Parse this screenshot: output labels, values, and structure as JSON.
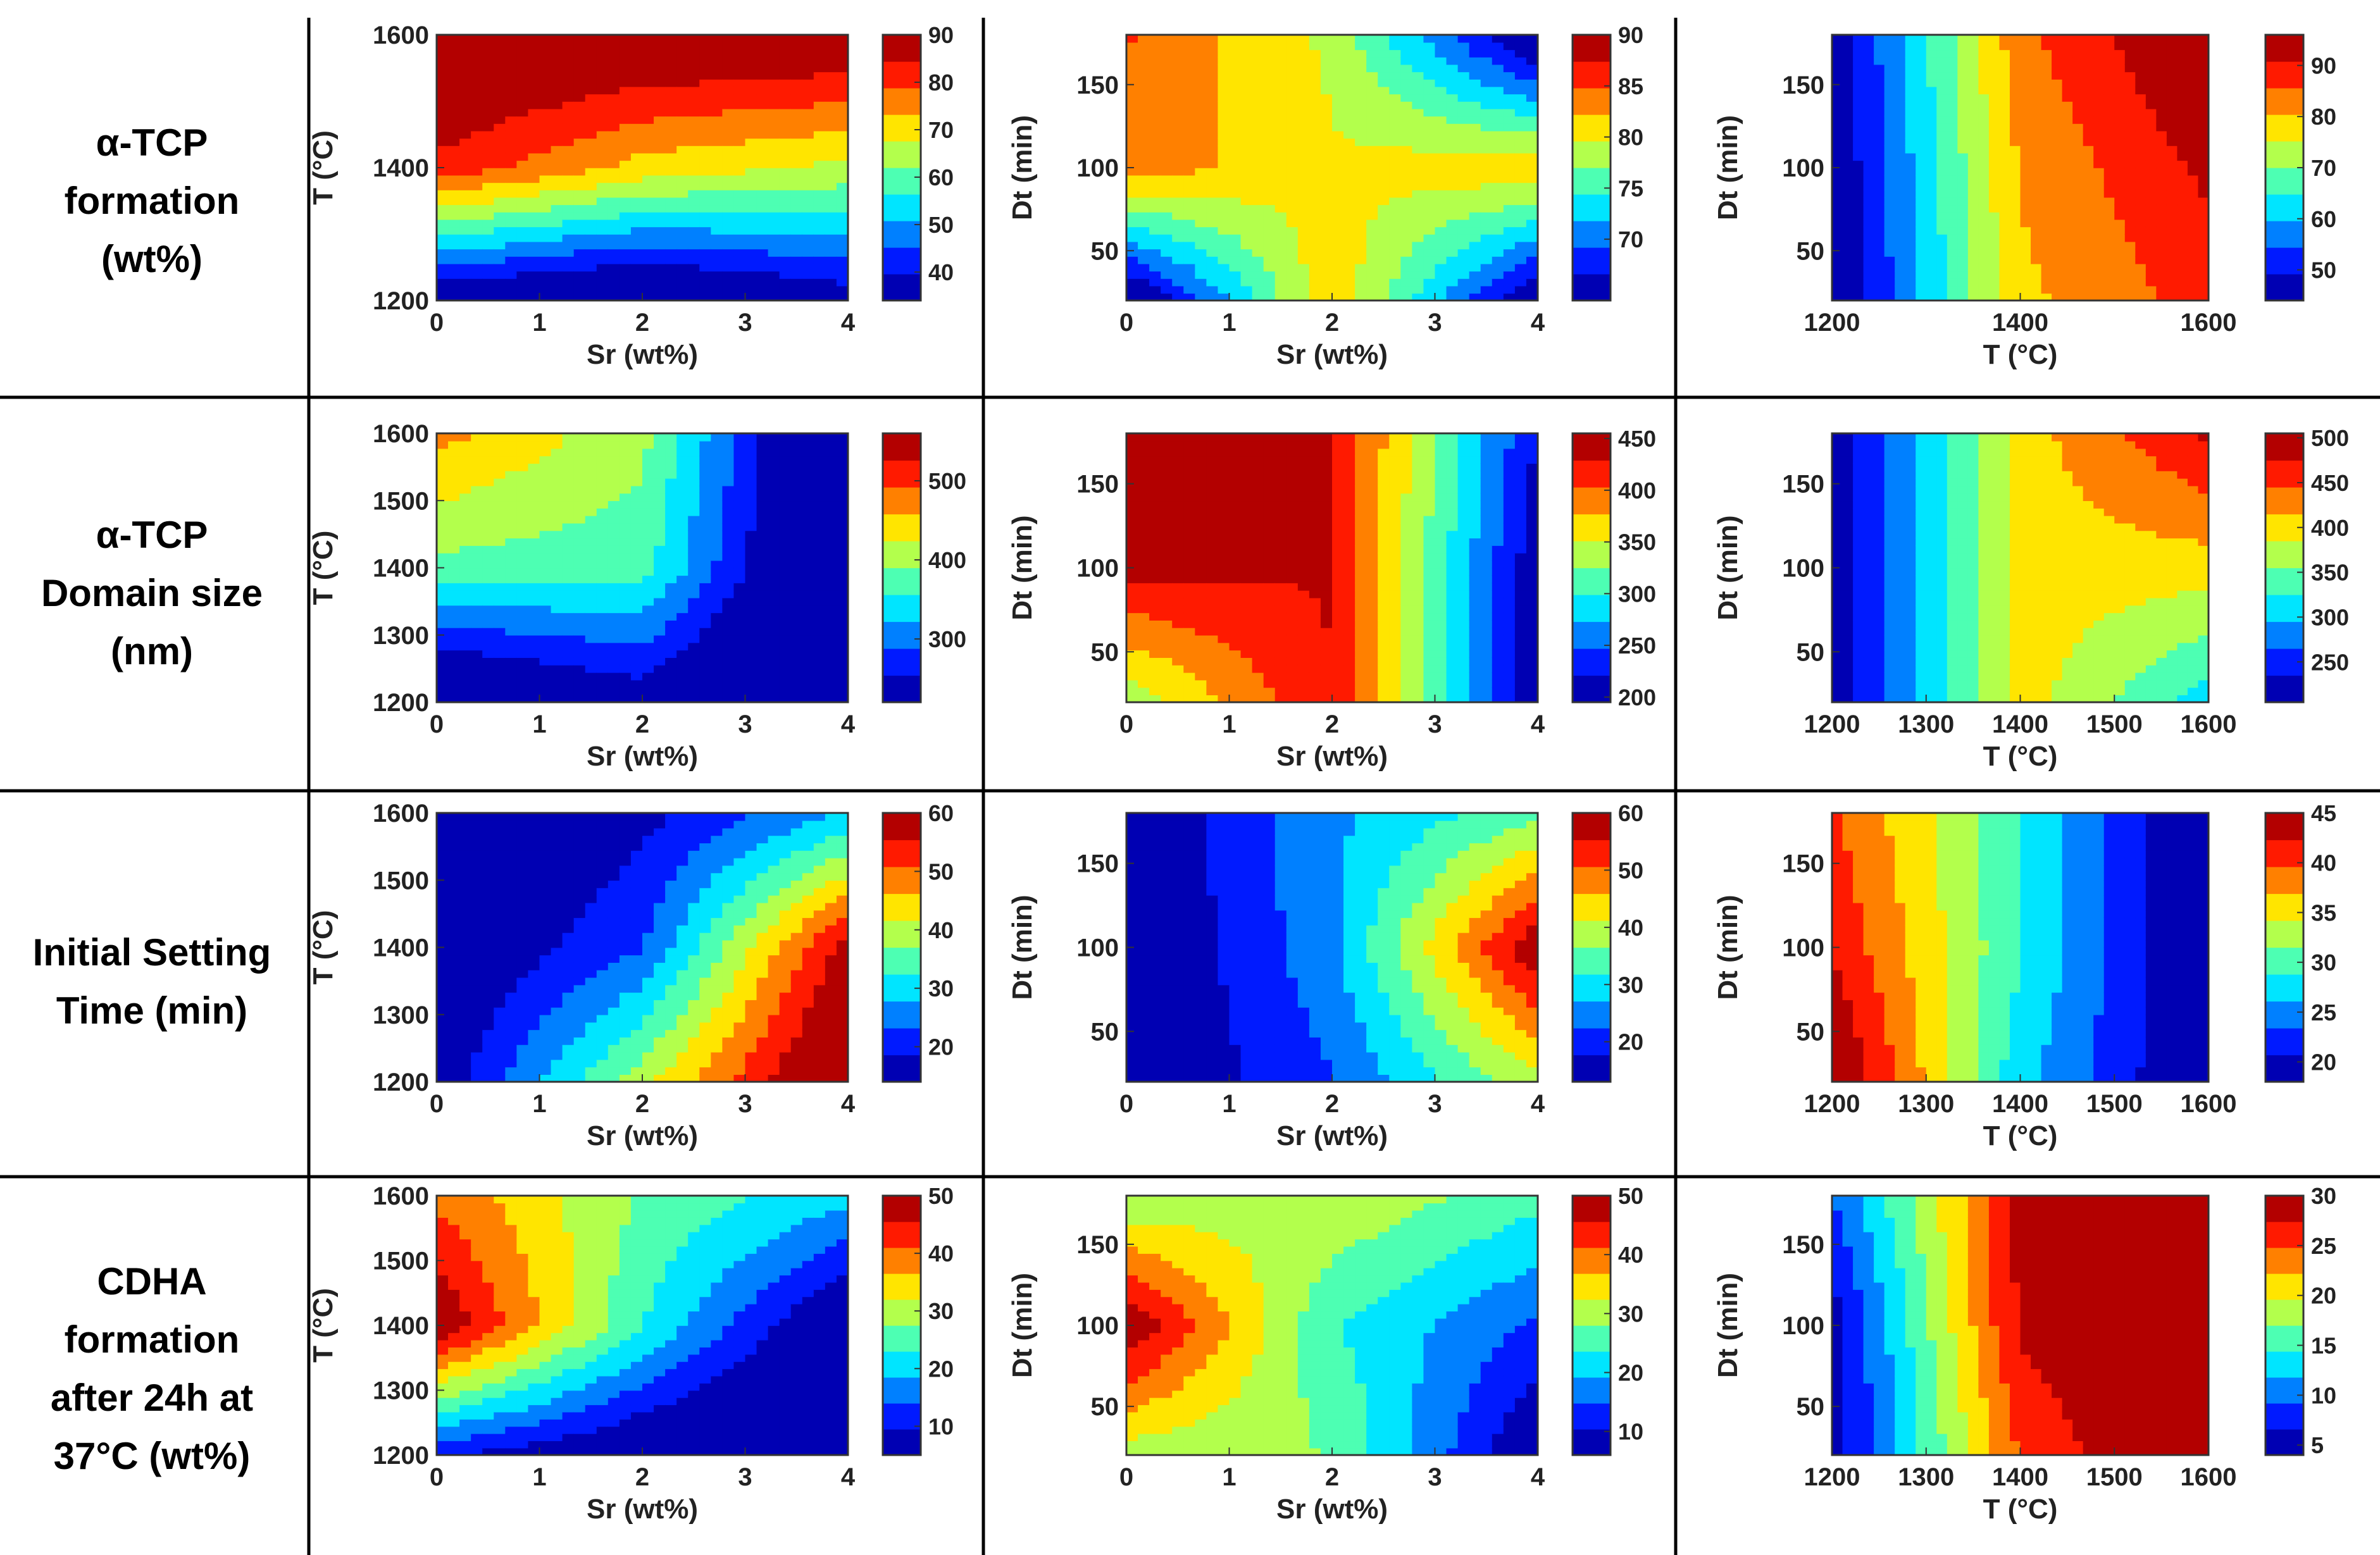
{
  "rows": [
    {
      "title_lines": [
        "α-TCP",
        "formation",
        "(wt%)"
      ]
    },
    {
      "title_lines": [
        "α-TCP",
        "Domain size",
        "(nm)"
      ]
    },
    {
      "title_lines": [
        "Initial Setting",
        "Time (min)"
      ]
    },
    {
      "title_lines": [
        "CDHA",
        "formation",
        "after 24h at",
        "37°C (wt%)"
      ]
    }
  ],
  "chart_data": [
    {
      "id": "p00",
      "type": "contour",
      "x_label": "Sr (wt%)",
      "y_label": "T (°C)",
      "x_range": [
        0,
        4
      ],
      "y_range": [
        1200,
        1600
      ],
      "x_ticks": [
        "0",
        "1",
        "2",
        "3",
        "4"
      ],
      "y_ticks": [
        "1200",
        "1400",
        "1600"
      ],
      "x_grid": [
        0,
        2,
        4
      ],
      "y_grid": [
        1200,
        1400,
        1600
      ],
      "z": [
        [
          32,
          27,
          36
        ],
        [
          83,
          71,
          66
        ],
        [
          95,
          93,
          92
        ]
      ],
      "colorbar_range": [
        34,
        90
      ],
      "colorbar_ticks": [
        "40",
        "50",
        "60",
        "70",
        "80",
        "90"
      ]
    },
    {
      "id": "p01",
      "type": "contour",
      "x_label": "Sr (wt%)",
      "y_label": "Dt (min)",
      "x_range": [
        0,
        4
      ],
      "y_range": [
        20,
        180
      ],
      "x_ticks": [
        "0",
        "1",
        "2",
        "3",
        "4"
      ],
      "y_ticks": [
        "50",
        "100",
        "150"
      ],
      "x_grid": [
        0,
        2,
        4
      ],
      "y_grid": [
        20,
        100,
        180
      ],
      "z": [
        [
          62,
          82,
          63
        ],
        [
          84,
          80,
          82
        ],
        [
          85,
          79,
          62
        ]
      ],
      "colorbar_range": [
        64,
        90
      ],
      "colorbar_ticks": [
        "70",
        "75",
        "80",
        "85",
        "90"
      ]
    },
    {
      "id": "p02",
      "type": "contour",
      "x_label": "T (°C)",
      "y_label": "Dt (min)",
      "x_range": [
        1200,
        1600
      ],
      "y_range": [
        20,
        180
      ],
      "x_ticks": [
        "1200",
        "1400",
        "1600"
      ],
      "y_ticks": [
        "50",
        "100",
        "150"
      ],
      "x_grid": [
        1200,
        1400,
        1600
      ],
      "y_grid": [
        20,
        100,
        180
      ],
      "z": [
        [
          43,
          79,
          88
        ],
        [
          44,
          81,
          92
        ],
        [
          45,
          84,
          98
        ]
      ],
      "colorbar_range": [
        44,
        96
      ],
      "colorbar_ticks": [
        "50",
        "60",
        "70",
        "80",
        "90"
      ]
    },
    {
      "id": "p10",
      "type": "contour",
      "x_label": "Sr (wt%)",
      "y_label": "T (°C)",
      "x_range": [
        0,
        4
      ],
      "y_range": [
        1200,
        1600
      ],
      "x_ticks": [
        "0",
        "1",
        "2",
        "3",
        "4"
      ],
      "y_ticks": [
        "1200",
        "1300",
        "1400",
        "1500",
        "1600"
      ],
      "x_grid": [
        0,
        2,
        4
      ],
      "y_grid": [
        1200,
        1400,
        1600
      ],
      "z": [
        [
          170,
          230,
          130
        ],
        [
          380,
          370,
          140
        ],
        [
          470,
          400,
          150
        ]
      ],
      "colorbar_range": [
        220,
        560
      ],
      "colorbar_ticks": [
        "300",
        "400",
        "500"
      ]
    },
    {
      "id": "p11",
      "type": "contour",
      "x_label": "Sr (wt%)",
      "y_label": "Dt (min)",
      "x_range": [
        0,
        4
      ],
      "y_range": [
        20,
        180
      ],
      "x_ticks": [
        "0",
        "1",
        "2",
        "3",
        "4"
      ],
      "y_ticks": [
        "50",
        "100",
        "150"
      ],
      "x_grid": [
        0,
        2,
        4
      ],
      "y_grid": [
        20,
        100,
        180
      ],
      "z": [
        [
          330,
          430,
          190
        ],
        [
          440,
          430,
          200
        ],
        [
          470,
          430,
          220
        ]
      ],
      "colorbar_range": [
        195,
        455
      ],
      "colorbar_ticks": [
        "200",
        "250",
        "300",
        "350",
        "400",
        "450"
      ]
    },
    {
      "id": "p12",
      "type": "contour",
      "x_label": "T (°C)",
      "y_label": "Dt (min)",
      "x_range": [
        1200,
        1600
      ],
      "y_range": [
        20,
        180
      ],
      "x_ticks": [
        "1200",
        "1300",
        "1400",
        "1500",
        "1600"
      ],
      "y_ticks": [
        "50",
        "100",
        "150"
      ],
      "x_grid": [
        1200,
        1400,
        1600
      ],
      "y_grid": [
        20,
        100,
        180
      ],
      "z": [
        [
          210,
          400,
          310
        ],
        [
          210,
          400,
          400
        ],
        [
          210,
          400,
          480
        ]
      ],
      "colorbar_range": [
        205,
        505
      ],
      "colorbar_ticks": [
        "250",
        "300",
        "350",
        "400",
        "450",
        "500"
      ]
    },
    {
      "id": "p20",
      "type": "contour",
      "x_label": "Sr (wt%)",
      "y_label": "T (°C)",
      "x_range": [
        0,
        4
      ],
      "y_range": [
        1200,
        1600
      ],
      "x_ticks": [
        "0",
        "1",
        "2",
        "3",
        "4"
      ],
      "y_ticks": [
        "1200",
        "1300",
        "1400",
        "1500",
        "1600"
      ],
      "x_grid": [
        0,
        2,
        4
      ],
      "y_grid": [
        1200,
        1400,
        1600
      ],
      "z": [
        [
          15,
          40,
          65
        ],
        [
          12,
          23,
          58
        ],
        [
          10,
          17,
          28
        ]
      ],
      "colorbar_range": [
        14,
        60
      ],
      "colorbar_ticks": [
        "20",
        "30",
        "40",
        "50",
        "60"
      ]
    },
    {
      "id": "p21",
      "type": "contour",
      "x_label": "Sr (wt%)",
      "y_label": "Dt (min)",
      "x_range": [
        0,
        4
      ],
      "y_range": [
        20,
        180
      ],
      "x_ticks": [
        "0",
        "1",
        "2",
        "3",
        "4"
      ],
      "y_ticks": [
        "50",
        "100",
        "150"
      ],
      "x_grid": [
        0,
        2,
        4
      ],
      "y_grid": [
        20,
        100,
        180
      ],
      "z": [
        [
          12,
          22,
          40
        ],
        [
          11,
          26,
          60
        ],
        [
          13,
          26,
          35
        ]
      ],
      "colorbar_range": [
        13,
        60
      ],
      "colorbar_ticks": [
        "20",
        "30",
        "40",
        "50",
        "60"
      ]
    },
    {
      "id": "p22",
      "type": "contour",
      "x_label": "T (°C)",
      "y_label": "Dt (min)",
      "x_range": [
        1200,
        1600
      ],
      "y_range": [
        20,
        180
      ],
      "x_ticks": [
        "1200",
        "1300",
        "1400",
        "1500",
        "1600"
      ],
      "y_ticks": [
        "50",
        "100",
        "150"
      ],
      "x_grid": [
        1200,
        1400,
        1600
      ],
      "y_grid": [
        20,
        100,
        180
      ],
      "z": [
        [
          46,
          27,
          17
        ],
        [
          42,
          29,
          17
        ],
        [
          40,
          29,
          17
        ]
      ],
      "colorbar_range": [
        18,
        45
      ],
      "colorbar_ticks": [
        "20",
        "25",
        "30",
        "35",
        "40",
        "45"
      ]
    },
    {
      "id": "p30",
      "type": "contour",
      "x_label": "Sr (wt%)",
      "y_label": "T (°C)",
      "x_range": [
        0,
        4
      ],
      "y_range": [
        1200,
        1600
      ],
      "x_ticks": [
        "0",
        "1",
        "2",
        "3",
        "4"
      ],
      "y_ticks": [
        "1200",
        "1300",
        "1400",
        "1500",
        "1600"
      ],
      "x_grid": [
        0,
        2,
        4
      ],
      "y_grid": [
        1200,
        1400,
        1600
      ],
      "z": [
        [
          10,
          3,
          -2
        ],
        [
          50,
          23,
          2
        ],
        [
          40,
          27,
          20
        ]
      ],
      "colorbar_range": [
        5,
        50
      ],
      "colorbar_ticks": [
        "10",
        "20",
        "30",
        "40",
        "50"
      ]
    },
    {
      "id": "p31",
      "type": "contour",
      "x_label": "Sr (wt%)",
      "y_label": "Dt (min)",
      "x_range": [
        0,
        4
      ],
      "y_range": [
        20,
        180
      ],
      "x_ticks": [
        "0",
        "1",
        "2",
        "3",
        "4"
      ],
      "y_ticks": [
        "50",
        "100",
        "150"
      ],
      "x_grid": [
        0,
        2,
        4
      ],
      "y_grid": [
        20,
        100,
        180
      ],
      "z": [
        [
          30,
          28,
          5
        ],
        [
          50,
          24,
          14
        ],
        [
          28,
          32,
          25
        ]
      ],
      "colorbar_range": [
        6,
        50
      ],
      "colorbar_ticks": [
        "10",
        "20",
        "30",
        "40",
        "50"
      ]
    },
    {
      "id": "p32",
      "type": "contour",
      "x_label": "T (°C)",
      "y_label": "Dt (min)",
      "x_range": [
        1200,
        1600
      ],
      "y_range": [
        20,
        180
      ],
      "x_ticks": [
        "1200",
        "1300",
        "1400",
        "1500",
        "1600"
      ],
      "y_ticks": [
        "50",
        "100",
        "150"
      ],
      "x_grid": [
        1200,
        1400,
        1600
      ],
      "y_grid": [
        20,
        100,
        180
      ],
      "z": [
        [
          5,
          25,
          32
        ],
        [
          5,
          28,
          32
        ],
        [
          9,
          28,
          32
        ]
      ],
      "colorbar_range": [
        4,
        30
      ],
      "colorbar_ticks": [
        "5",
        "10",
        "15",
        "20",
        "25",
        "30"
      ]
    }
  ]
}
